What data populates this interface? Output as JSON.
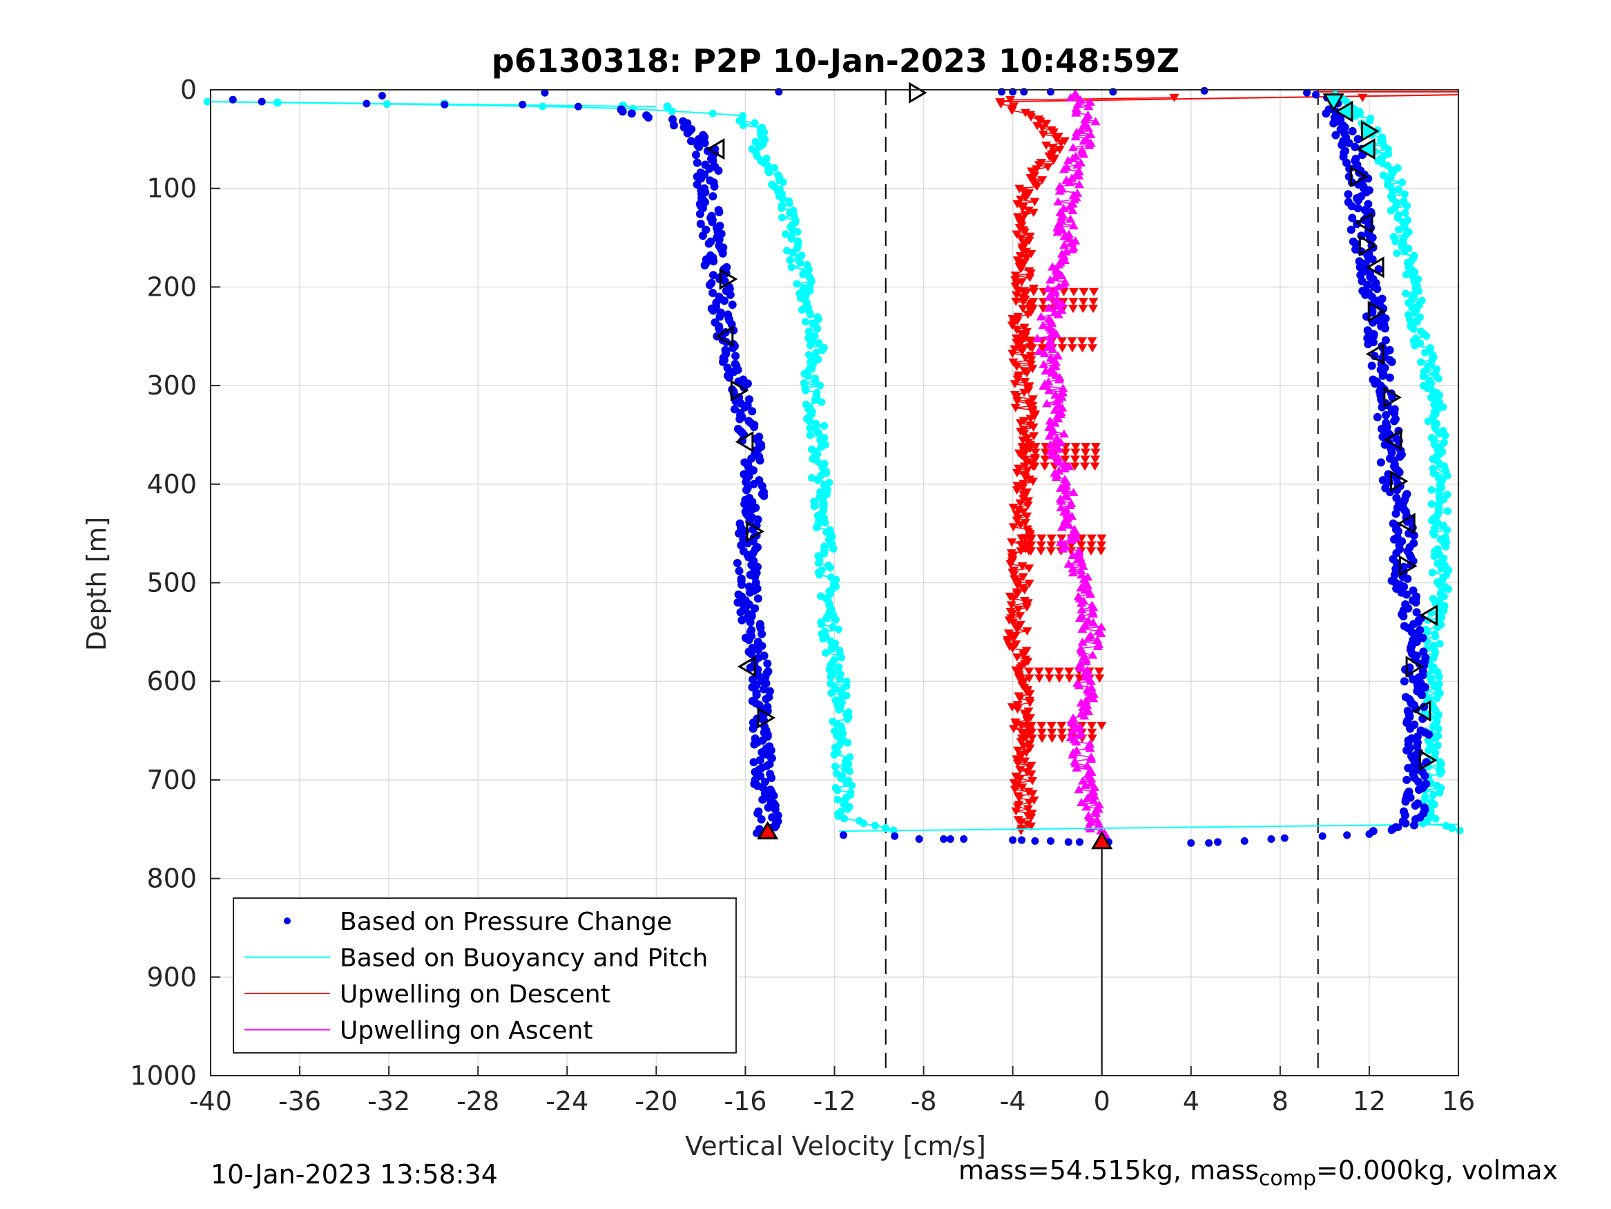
{
  "chart_data": {
    "type": "scatter",
    "title": "p6130318: P2P 10-Jan-2023 10:48:59Z",
    "xlabel": "Vertical Velocity [cm/s]",
    "ylabel": "Depth [m]",
    "xlim": [
      -40,
      16
    ],
    "ylim": [
      0,
      1000
    ],
    "y_reversed": true,
    "grid": true,
    "xticks": [
      "-40",
      "-36",
      "-32",
      "-28",
      "-24",
      "-20",
      "-16",
      "-12",
      "-8",
      "-4",
      "0",
      "4",
      "8",
      "12",
      "16"
    ],
    "yticks": [
      "0",
      "100",
      "200",
      "300",
      "400",
      "500",
      "600",
      "700",
      "800",
      "900",
      "1000"
    ],
    "reference_lines": {
      "dashed_x": [
        -9.7,
        9.7
      ],
      "solid_x": 0
    },
    "legend": {
      "location": "bottom-left",
      "entries": [
        {
          "label": "Based on Pressure Change",
          "style": "dot",
          "color": "#0000ee"
        },
        {
          "label": "Based on Buoyancy and Pitch",
          "style": "line",
          "color": "#00ffff"
        },
        {
          "label": "Upwelling on Descent",
          "style": "line",
          "color": "#ff0000"
        },
        {
          "label": "Upwelling on Ascent",
          "style": "line",
          "color": "#ff00ff"
        }
      ]
    },
    "series": [
      {
        "name": "Based on Pressure Change",
        "color": "#0000ee",
        "marker": "dot",
        "segments": [
          {
            "part": "descent",
            "depth": [
              10,
              15,
              20,
              25,
              30,
              40,
              50,
              60,
              80,
              100,
              150,
              200,
              250,
              300,
              350,
              400,
              450,
              500,
              550,
              600,
              650,
              700,
              740,
              755
            ],
            "velocity": [
              -38,
              -30,
              -22,
              -20.5,
              -19.5,
              -18.5,
              -18,
              -17.8,
              -17.6,
              -17.8,
              -17.5,
              -17.2,
              -16.8,
              -16.3,
              -15.8,
              -15.6,
              -15.8,
              -16,
              -15.6,
              -15.4,
              -15.3,
              -15.2,
              -15,
              -15
            ]
          },
          {
            "part": "ascent",
            "depth": [
              760,
              750,
              740,
              700,
              650,
              600,
              550,
              500,
              450,
              400,
              350,
              300,
              250,
              200,
              150,
              100,
              60,
              30,
              15,
              5,
              0
            ],
            "velocity": [
              9,
              13.5,
              14,
              14.1,
              14.2,
              14,
              14.1,
              13.5,
              13.6,
              13.1,
              12.9,
              12.7,
              12.4,
              12.1,
              11.7,
              11.5,
              11.3,
              10.5,
              9.8,
              9.2,
              4.7
            ]
          }
        ]
      },
      {
        "name": "Based on Buoyancy and Pitch",
        "color": "#00ffff",
        "marker": "line+dot",
        "segments": [
          {
            "part": "descent",
            "depth": [
              12,
              13,
              15,
              18,
              25,
              40,
              60,
              80,
              100,
              150,
              200,
              250,
              300,
              350,
              400,
              450,
              500,
              550,
              600,
              650,
              700,
              740,
              752
            ],
            "velocity": [
              -40,
              -37,
              -30,
              -22,
              -16.3,
              -15.5,
              -15.3,
              -14.8,
              -14.5,
              -13.9,
              -13.3,
              -12.8,
              -13,
              -12.8,
              -12.6,
              -12.4,
              -12.3,
              -12.2,
              -11.8,
              -11.7,
              -11.6,
              -11.5,
              -9.5
            ]
          },
          {
            "part": "ascent",
            "depth": [
              752,
              745,
              700,
              650,
              600,
              550,
              500,
              450,
              400,
              350,
              300,
              250,
              200,
              150,
              100,
              60,
              30,
              10,
              5
            ],
            "velocity": [
              16,
              14.8,
              14.9,
              14.8,
              14.8,
              14.9,
              15.2,
              15.1,
              15.2,
              15.1,
              14.8,
              14.3,
              13.9,
              13.5,
              13.2,
              12.6,
              11.8,
              10.8,
              10.4
            ]
          }
        ]
      },
      {
        "name": "Upwelling on Descent",
        "color": "#ff0000",
        "marker": "triangle-down",
        "depth": [
          5,
          10,
          20,
          30,
          50,
          70,
          100,
          150,
          200,
          250,
          300,
          350,
          400,
          450,
          500,
          550,
          600,
          650,
          700,
          740,
          755
        ],
        "velocity": [
          16,
          -4.5,
          -4,
          -3,
          -2,
          -2.5,
          -3.3,
          -3.6,
          -3.5,
          -3.6,
          -3.5,
          -3.4,
          -3.5,
          -3.6,
          -3.7,
          -3.8,
          -3.7,
          -3.6,
          -3.5,
          -3.4,
          -3.8
        ]
      },
      {
        "name": "Upwelling on Ascent",
        "color": "#ff00ff",
        "marker": "triangle-up",
        "depth": [
          760,
          740,
          700,
          650,
          600,
          550,
          500,
          450,
          400,
          350,
          300,
          250,
          200,
          150,
          100,
          60,
          30,
          10,
          0
        ],
        "velocity": [
          0,
          -0.3,
          -0.8,
          -1,
          -0.7,
          -0.4,
          -1,
          -1.5,
          -1.7,
          -2,
          -2.2,
          -2.5,
          -2,
          -1.6,
          -1.5,
          -1,
          -0.7,
          -1,
          -1.3
        ]
      }
    ],
    "markers": {
      "outline_triangles": [
        {
          "velocity": -17.3,
          "depth": 60,
          "dir": "left"
        },
        {
          "velocity": -16.8,
          "depth": 192,
          "dir": "right"
        },
        {
          "velocity": -16.9,
          "depth": 250,
          "dir": "left"
        },
        {
          "velocity": -16.3,
          "depth": 305,
          "dir": "right"
        },
        {
          "velocity": -16,
          "depth": 357,
          "dir": "left"
        },
        {
          "velocity": -15.6,
          "depth": 448,
          "dir": "right"
        },
        {
          "velocity": -15.9,
          "depth": 585,
          "dir": "left"
        },
        {
          "velocity": -15.1,
          "depth": 637,
          "dir": "right"
        },
        {
          "velocity": -8.3,
          "depth": 3,
          "dir": "right"
        },
        {
          "velocity": 10.4,
          "depth": 12,
          "dir": "down"
        },
        {
          "velocity": 10.9,
          "depth": 22,
          "dir": "left"
        },
        {
          "velocity": 12,
          "depth": 42,
          "dir": "right"
        },
        {
          "velocity": 11.9,
          "depth": 60,
          "dir": "left"
        },
        {
          "velocity": 11.5,
          "depth": 88,
          "dir": "right"
        },
        {
          "velocity": 11.8,
          "depth": 135,
          "dir": "left"
        },
        {
          "velocity": 11.9,
          "depth": 158,
          "dir": "right"
        },
        {
          "velocity": 12.3,
          "depth": 180,
          "dir": "left"
        },
        {
          "velocity": 12.3,
          "depth": 225,
          "dir": "right"
        },
        {
          "velocity": 12.3,
          "depth": 268,
          "dir": "left"
        },
        {
          "velocity": 13,
          "depth": 312,
          "dir": "right"
        },
        {
          "velocity": 13.1,
          "depth": 355,
          "dir": "left"
        },
        {
          "velocity": 13.3,
          "depth": 397,
          "dir": "right"
        },
        {
          "velocity": 13.7,
          "depth": 440,
          "dir": "left"
        },
        {
          "velocity": 13.7,
          "depth": 483,
          "dir": "right"
        },
        {
          "velocity": 14.7,
          "depth": 533,
          "dir": "left"
        },
        {
          "velocity": 14,
          "depth": 585,
          "dir": "right"
        },
        {
          "velocity": 14.4,
          "depth": 630,
          "dir": "left"
        },
        {
          "velocity": 14.6,
          "depth": 680,
          "dir": "right"
        }
      ],
      "turnaround": [
        {
          "velocity": -15,
          "depth": 752,
          "color": "#ff0000",
          "dir": "up"
        },
        {
          "velocity": 0,
          "depth": 762,
          "color": "#ff0000",
          "dir": "up"
        }
      ]
    }
  },
  "footer": {
    "left": "10-Jan-2023 13:58:34",
    "right_prefix": "mass=54.515kg, mass",
    "right_sub": "comp",
    "right_suffix": "=0.000kg, volmax"
  }
}
